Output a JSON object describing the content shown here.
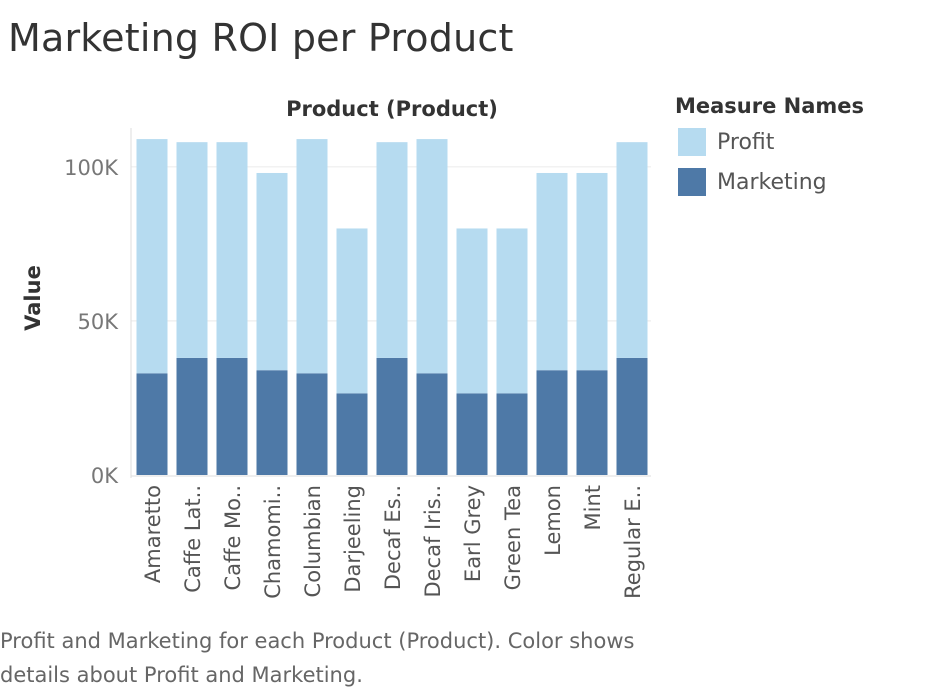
{
  "title": "Marketing ROI per Product",
  "caption": "Profit and Marketing for each Product (Product).  Color shows details about Profit and Marketing.",
  "legend": {
    "title": "Measure Names",
    "items": [
      {
        "label": "Profit",
        "color": "#b6dbf0"
      },
      {
        "label": "Marketing",
        "color": "#4e79a7"
      }
    ]
  },
  "chart_data": {
    "type": "bar",
    "stacked": true,
    "title": "Product (Product)",
    "xlabel": "",
    "ylabel": "Value",
    "ylim": [
      0,
      110000
    ],
    "yticks": [
      0,
      50000,
      100000
    ],
    "ytick_labels": [
      "0K",
      "50K",
      "100K"
    ],
    "grid": true,
    "legend_position": "right",
    "categories": [
      "Amaretto",
      "Caffe Lat..",
      "Caffe Mo..",
      "Chamomi..",
      "Columbian",
      "Darjeeling",
      "Decaf Es..",
      "Decaf Iris..",
      "Earl Grey",
      "Green Tea",
      "Lemon",
      "Mint",
      "Regular E.."
    ],
    "series": [
      {
        "name": "Marketing",
        "color": "#4e79a7",
        "values": [
          33000,
          38000,
          38000,
          34000,
          33000,
          26500,
          38000,
          33000,
          26500,
          26500,
          34000,
          34000,
          38000
        ]
      },
      {
        "name": "Profit",
        "color": "#b6dbf0",
        "values": [
          76000,
          70000,
          70000,
          64000,
          76000,
          53500,
          70000,
          76000,
          53500,
          53500,
          64000,
          64000,
          70000
        ]
      }
    ]
  }
}
